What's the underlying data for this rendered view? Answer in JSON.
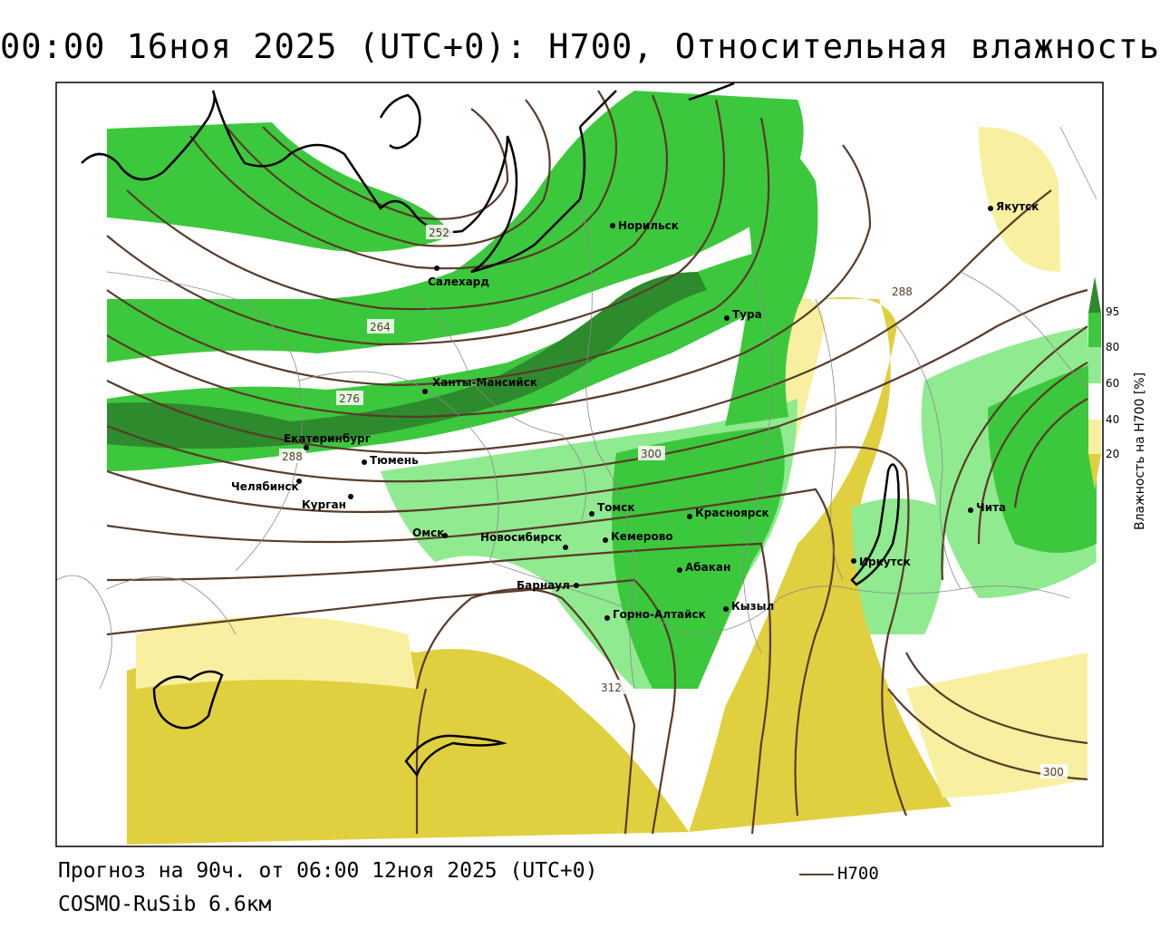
{
  "title": "00:00 16ноя 2025 (UTC+0): H700, Относительная влажность",
  "footer": {
    "forecast": "Прогноз на 90ч. от 06:00 12ноя 2025 (UTC+0)",
    "model": "COSMO-RuSib 6.6км"
  },
  "legend": {
    "line_label": "H700",
    "line_color": "#5a3a2a"
  },
  "colorbar": {
    "title": "Влажность на H700 [%]",
    "ticks": [
      "95",
      "80",
      "60",
      "40",
      "20"
    ],
    "colors": [
      "#2d8a2d",
      "#3cc83c",
      "#90ea90",
      "#ffffff",
      "#f8f0a0",
      "#e0d040"
    ]
  },
  "cities": [
    {
      "name": "Якутск"
    },
    {
      "name": "Норильск"
    },
    {
      "name": "Салехард"
    },
    {
      "name": "Тура"
    },
    {
      "name": "Ханты-Мансийск"
    },
    {
      "name": "Екатеринбург"
    },
    {
      "name": "Тюмень"
    },
    {
      "name": "Челябинск"
    },
    {
      "name": "Курган"
    },
    {
      "name": "Омск"
    },
    {
      "name": "Томск"
    },
    {
      "name": "Новосибирск"
    },
    {
      "name": "Кемерово"
    },
    {
      "name": "Красноярск"
    },
    {
      "name": "Абакан"
    },
    {
      "name": "Барнаул"
    },
    {
      "name": "Горно-Алтайск"
    },
    {
      "name": "Кызыл"
    },
    {
      "name": "Иркутск"
    },
    {
      "name": "Чита"
    }
  ],
  "isoline_labels": [
    "252",
    "264",
    "276",
    "288",
    "288",
    "300",
    "300",
    "312"
  ],
  "colors": {
    "frame": "#000000",
    "very_wet": "#2d8a2d",
    "wet": "#3cc83c",
    "moist": "#90ea90",
    "dry_light": "#f8f0a0",
    "dry": "#e0d040",
    "isoline": "#5a3a2a",
    "border": "#888888"
  }
}
